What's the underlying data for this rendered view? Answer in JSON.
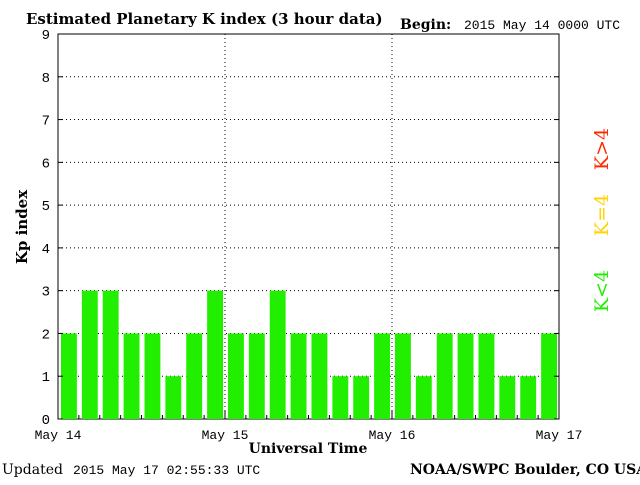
{
  "header": {
    "title": "Estimated Planetary K index (3 hour data)",
    "begin_label": "Begin:",
    "begin_value": "2015 May 14 0000 UTC"
  },
  "footer": {
    "updated_label": "Updated",
    "updated_value": "2015 May 17 02:55:33 UTC",
    "source": "NOAA/SWPC Boulder, CO USA"
  },
  "legend": {
    "k_gt_4": {
      "label": "K>4",
      "color": "#ff2a00"
    },
    "k_eq_4": {
      "label": "K=4",
      "color": "#ffd400"
    },
    "k_lt_4": {
      "label": "K<4",
      "color": "#22ee00"
    }
  },
  "chart_data": {
    "type": "bar",
    "title": "Estimated Planetary K index (3 hour data)",
    "xlabel": "Universal Time",
    "ylabel": "Kp index",
    "ylim": [
      0,
      9
    ],
    "yticks": [
      "0",
      "1",
      "2",
      "3",
      "4",
      "5",
      "6",
      "7",
      "8",
      "9"
    ],
    "xticks": [
      "May 14",
      "May 15",
      "May 16",
      "May 17"
    ],
    "bar_color": "#22ee00",
    "grid": "dotted",
    "values": [
      2,
      3,
      3,
      2,
      2,
      1,
      2,
      3,
      2,
      2,
      3,
      2,
      2,
      1,
      1,
      2,
      2,
      1,
      2,
      2,
      2,
      1,
      1,
      2
    ]
  }
}
